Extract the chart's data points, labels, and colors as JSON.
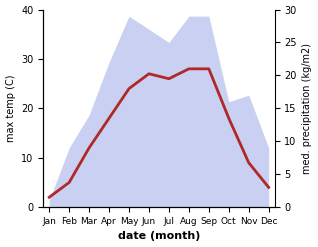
{
  "months": [
    "Jan",
    "Feb",
    "Mar",
    "Apr",
    "May",
    "Jun",
    "Jul",
    "Aug",
    "Sep",
    "Oct",
    "Nov",
    "Dec"
  ],
  "temp": [
    2,
    5,
    12,
    18,
    24,
    27,
    26,
    28,
    28,
    18,
    9,
    4
  ],
  "precip": [
    1,
    9,
    14,
    22,
    29,
    27,
    25,
    29,
    29,
    16,
    17,
    9
  ],
  "temp_color": "#b02828",
  "precip_fill_color": "#c0c8f0",
  "precip_fill_alpha": 0.85,
  "temp_ylim": [
    0,
    40
  ],
  "precip_ylim": [
    0,
    30
  ],
  "xlabel": "date (month)",
  "ylabel_left": "max temp (C)",
  "ylabel_right": "med. precipitation (kg/m2)",
  "temp_yticks": [
    0,
    10,
    20,
    30,
    40
  ],
  "precip_yticks": [
    0,
    5,
    10,
    15,
    20,
    25,
    30
  ],
  "background_color": "#ffffff",
  "xlabel_fontsize": 8,
  "ylabel_fontsize": 7,
  "tick_fontsize": 7,
  "xtick_fontsize": 6.5,
  "linewidth": 2.0
}
